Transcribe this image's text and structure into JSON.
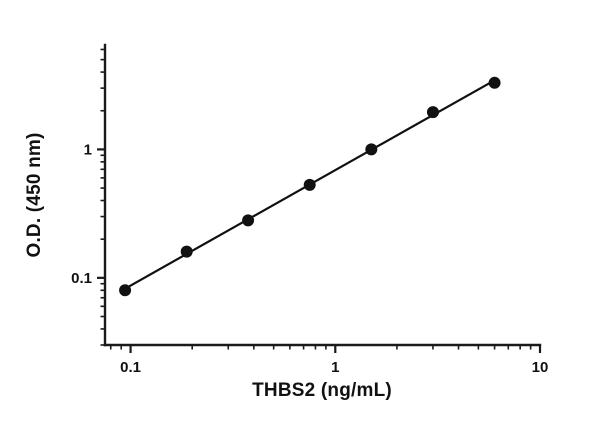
{
  "chart_data": {
    "type": "scatter",
    "fit_line": true,
    "xlabel": "THBS2 (ng/mL)",
    "ylabel": "O.D. (450 nm)",
    "x_scale": "log",
    "y_scale": "log",
    "xlim": [
      0.075,
      10
    ],
    "ylim": [
      0.03,
      6.5
    ],
    "x_major_ticks": [
      0.1,
      1,
      10
    ],
    "x_tick_labels": [
      "0.1",
      "1",
      "10"
    ],
    "y_major_ticks": [
      0.1,
      1
    ],
    "y_tick_labels": [
      "0.1",
      "1"
    ],
    "x": [
      0.094,
      0.188,
      0.375,
      0.75,
      1.5,
      3,
      6
    ],
    "y": [
      0.08,
      0.16,
      0.28,
      0.53,
      1.0,
      1.95,
      3.3
    ],
    "marker_color": "#111111",
    "line_color": "#111111",
    "axis_color": "#1a1a1a",
    "legend": "none",
    "grid": "off"
  }
}
